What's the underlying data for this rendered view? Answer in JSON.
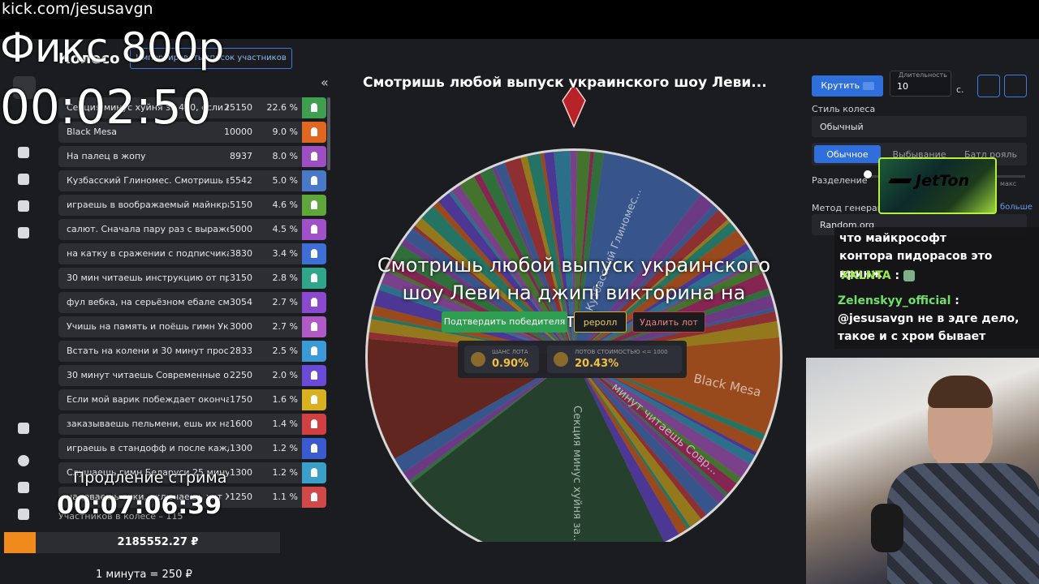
{
  "overlay": {
    "url": "kick.com/jesusavgn",
    "price": "Фикс 800р",
    "timer": "00:02:50"
  },
  "sidebar": {
    "title": "Колесо",
    "import_button": "Импортировать список участников"
  },
  "lots": [
    {
      "name": "Секция минус хуйня за 450, если вы...",
      "amount": 25150,
      "percent": "22.6 %",
      "color": "#3f9e4f"
    },
    {
      "name": "Black Mesa",
      "amount": 10000,
      "percent": "9.0 %",
      "color": "#e0671f"
    },
    {
      "name": "На палец в жопу",
      "amount": 8937,
      "percent": "8.0 %",
      "color": "#9b4fc0"
    },
    {
      "name": "Кузбасский Глиномес. Смотришь в ка...",
      "amount": 5542,
      "percent": "5.0 %",
      "color": "#4a78c8"
    },
    {
      "name": "играешь в воображаемый майнкрафт ...",
      "amount": 5150,
      "percent": "4.6 %",
      "color": "#5fa63a"
    },
    {
      "name": "салют. Сначала пару раз с выражени...",
      "amount": 5000,
      "percent": "4.5 %",
      "color": "#a050c8"
    },
    {
      "name": "на катку в сражении с подписчиками ...",
      "amount": 3830,
      "percent": "3.4 %",
      "color": "#3d6fd6"
    },
    {
      "name": "30 мин читаешь инструкцию от принт...",
      "amount": 3150,
      "percent": "2.8 %",
      "color": "#2fa68a"
    },
    {
      "name": "фул вебка, на серьёзном ебале смотр...",
      "amount": 3054,
      "percent": "2.7 %",
      "color": "#8a4ad0"
    },
    {
      "name": "Учишь на память и поёшь гимн Украи...",
      "amount": 3000,
      "percent": "2.7 %",
      "color": "#b05ac8"
    },
    {
      "name": "Встать на колени и 30 минут просить ...",
      "amount": 2833,
      "percent": "2.5 %",
      "color": "#3a9ad8"
    },
    {
      "name": "30 минут читаешь Современные опе...",
      "amount": 2250,
      "percent": "2.0 %",
      "color": "#6a4ad8"
    },
    {
      "name": "Если мой варик побеждает окончател...",
      "amount": 1750,
      "percent": "1.6 %",
      "color": "#d8b020"
    },
    {
      "name": "заказываешь пельмени, ешь их на ка...",
      "amount": 1600,
      "percent": "1.4 %",
      "color": "#d04040"
    },
    {
      "name": "играешь в стандофф и после каждой ...",
      "amount": 1300,
      "percent": "1.2 %",
      "color": "#3a5ad0"
    },
    {
      "name": "Слушаешь гимн Беларуси 25 минут и ...",
      "amount": 1300,
      "percent": "1.2 %",
      "color": "#3aa0c8"
    },
    {
      "name": "надеваешь очки, включаешь хит XE...",
      "amount": 1250,
      "percent": "1.1 %",
      "color": "#d04848"
    }
  ],
  "lots_footer": "Участников в колесе – 115",
  "extension": {
    "label": "Продление стрима",
    "timer": "00:07:06:39",
    "total": "2185552.27 ₽",
    "rate": "1 минута = 250 ₽"
  },
  "wheel": {
    "title": "Смотришь любой выпуск украинского шоу Леви...",
    "winner": "Смотришь любой выпуск украинского шоу Леви на джипі викторина на ютуб",
    "confirm": "Подтвердить победителя",
    "reroll": "реролл",
    "delete": "Удалить лот",
    "chance_label": "ШАНС ЛОТА",
    "chance": "0.90%",
    "cheap_label": "ЛОТОВ СТОИМОСТЬЮ <= 1000",
    "cheap": "20.43%",
    "segment_labels": [
      "Кузбасский Глиномес...",
      "Black Mesa",
      "Секция минус хуйня за...",
      "минут читаешь Совр..."
    ]
  },
  "controls": {
    "spin": "Крутить",
    "duration_label": "Длительность",
    "duration": 10,
    "unit": "с.",
    "style_label": "Стиль колеса",
    "style": "Обычный",
    "tabs": [
      "Обычное",
      "Выбывание",
      "Батл рояль"
    ],
    "split_label": "Разделение",
    "split_max": "макс",
    "method_label": "Метод генерации",
    "method": "Random.org",
    "more": "больше"
  },
  "ad": {
    "brand": "JetTon"
  },
  "chat": {
    "first": "что майкрософт контора пидорасов это кринж",
    "messages": [
      {
        "user": "XKLNTA",
        "sep": ":"
      },
      {
        "user": "Zelenskyy_official",
        "sep": ":",
        "text": "@jesusavgn не в эдге дело, такое и с хром бывает"
      }
    ]
  }
}
